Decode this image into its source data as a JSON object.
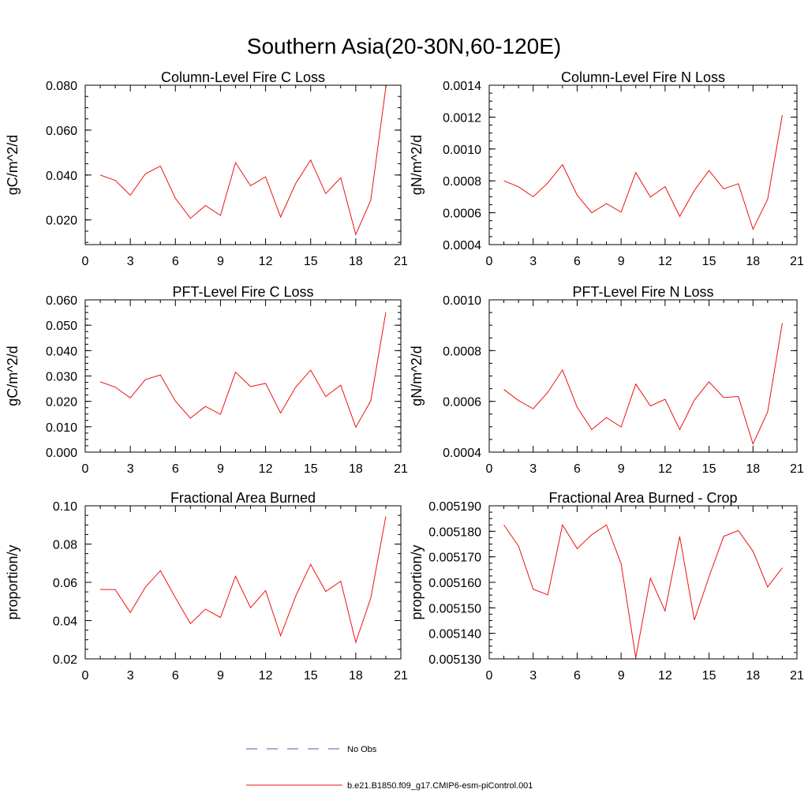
{
  "page_title": "Southern Asia(20-30N,60-120E)",
  "colors": {
    "model_line": "#ee1111",
    "obs_line": "#5555aa",
    "axis": "#000000"
  },
  "legend": [
    {
      "label": "No Obs",
      "style": "dashed",
      "color": "#5555aa"
    },
    {
      "label": "b.e21.B1850.f09_g17.CMIP6-esm-piControl.001",
      "style": "solid",
      "color": "#ee1111"
    }
  ],
  "chart_data": [
    {
      "type": "line",
      "title": "Column-Level Fire C Loss",
      "ylabel": "gC/m^2/d",
      "xlim": [
        0,
        21
      ],
      "xticks": [
        "0",
        "3",
        "6",
        "9",
        "12",
        "15",
        "18",
        "21"
      ],
      "ylim": [
        0.009,
        0.08
      ],
      "yticks": [
        "0.020",
        "0.040",
        "0.060",
        "0.080"
      ],
      "ytick_values": [
        0.02,
        0.04,
        0.06,
        0.08
      ],
      "yminor_step": 0.005,
      "x": [
        1,
        2,
        3,
        4,
        5,
        6,
        7,
        8,
        9,
        10,
        11,
        12,
        13,
        14,
        15,
        16,
        17,
        18,
        19,
        20
      ],
      "series": [
        {
          "name": "b.e21.B1850.f09_g17.CMIP6-esm-piControl.001",
          "values": [
            0.04,
            0.0376,
            0.031,
            0.0405,
            0.044,
            0.0296,
            0.0207,
            0.0264,
            0.022,
            0.0455,
            0.0352,
            0.0392,
            0.0213,
            0.0362,
            0.0467,
            0.0317,
            0.0388,
            0.0135,
            0.0288,
            0.079
          ]
        }
      ]
    },
    {
      "type": "line",
      "title": "Column-Level Fire N Loss",
      "ylabel": "gN/m^2/d",
      "xlim": [
        0,
        21
      ],
      "xticks": [
        "0",
        "3",
        "6",
        "9",
        "12",
        "15",
        "18",
        "21"
      ],
      "ylim": [
        0.0004,
        0.0014
      ],
      "yticks": [
        "0.0004",
        "0.0006",
        "0.0008",
        "0.0010",
        "0.0012",
        "0.0014"
      ],
      "ytick_values": [
        0.0004,
        0.0006,
        0.0008,
        0.001,
        0.0012,
        0.0014
      ],
      "yminor_step": 5e-05,
      "x": [
        1,
        2,
        3,
        4,
        5,
        6,
        7,
        8,
        9,
        10,
        11,
        12,
        13,
        14,
        15,
        16,
        17,
        18,
        19,
        20
      ],
      "series": [
        {
          "name": "b.e21.B1850.f09_g17.CMIP6-esm-piControl.001",
          "values": [
            0.0008,
            0.000763,
            0.0007,
            0.000787,
            0.000902,
            0.00071,
            0.0006,
            0.000657,
            0.000604,
            0.000852,
            0.000698,
            0.000764,
            0.000577,
            0.00074,
            0.000865,
            0.00075,
            0.000782,
            0.000497,
            0.000685,
            0.001212
          ]
        }
      ]
    },
    {
      "type": "line",
      "title": "PFT-Level Fire C Loss",
      "ylabel": "gC/m^2/d",
      "xlim": [
        0,
        21
      ],
      "xticks": [
        "0",
        "3",
        "6",
        "9",
        "12",
        "15",
        "18",
        "21"
      ],
      "ylim": [
        0.0,
        0.06
      ],
      "yticks": [
        "0.000",
        "0.010",
        "0.020",
        "0.030",
        "0.040",
        "0.050",
        "0.060"
      ],
      "ytick_values": [
        0.0,
        0.01,
        0.02,
        0.03,
        0.04,
        0.05,
        0.06
      ],
      "yminor_step": 0.0025,
      "x": [
        1,
        2,
        3,
        4,
        5,
        6,
        7,
        8,
        9,
        10,
        11,
        12,
        13,
        14,
        15,
        16,
        17,
        18,
        19,
        20
      ],
      "series": [
        {
          "name": "b.e21.B1850.f09_g17.CMIP6-esm-piControl.001",
          "values": [
            0.0277,
            0.0256,
            0.0214,
            0.0286,
            0.0304,
            0.0201,
            0.0134,
            0.018,
            0.0149,
            0.0315,
            0.0258,
            0.0271,
            0.0154,
            0.0256,
            0.0323,
            0.0219,
            0.0264,
            0.0098,
            0.0202,
            0.0551
          ]
        }
      ]
    },
    {
      "type": "line",
      "title": "PFT-Level Fire N Loss",
      "ylabel": "gN/m^2/d",
      "xlim": [
        0,
        21
      ],
      "xticks": [
        "0",
        "3",
        "6",
        "9",
        "12",
        "15",
        "18",
        "21"
      ],
      "ylim": [
        0.0004,
        0.001
      ],
      "yticks": [
        "0.0004",
        "0.0006",
        "0.0008",
        "0.0010"
      ],
      "ytick_values": [
        0.0004,
        0.0006,
        0.0008,
        0.001
      ],
      "yminor_step": 5e-05,
      "x": [
        1,
        2,
        3,
        4,
        5,
        6,
        7,
        8,
        9,
        10,
        11,
        12,
        13,
        14,
        15,
        16,
        17,
        18,
        19,
        20
      ],
      "series": [
        {
          "name": "b.e21.B1850.f09_g17.CMIP6-esm-piControl.001",
          "values": [
            0.000647,
            0.000603,
            0.000571,
            0.000636,
            0.000724,
            0.000577,
            0.000489,
            0.000536,
            0.000499,
            0.000668,
            0.000582,
            0.000608,
            0.000489,
            0.000605,
            0.000677,
            0.000615,
            0.000619,
            0.000432,
            0.000559,
            0.000908
          ]
        }
      ]
    },
    {
      "type": "line",
      "title": "Fractional Area Burned",
      "ylabel": "proportion/y",
      "xlim": [
        0,
        21
      ],
      "xticks": [
        "0",
        "3",
        "6",
        "9",
        "12",
        "15",
        "18",
        "21"
      ],
      "ylim": [
        0.02,
        0.1
      ],
      "yticks": [
        "0.02",
        "0.04",
        "0.06",
        "0.08",
        "0.10"
      ],
      "ytick_values": [
        0.02,
        0.04,
        0.06,
        0.08,
        0.1
      ],
      "yminor_step": 0.005,
      "x": [
        1,
        2,
        3,
        4,
        5,
        6,
        7,
        8,
        9,
        10,
        11,
        12,
        13,
        14,
        15,
        16,
        17,
        18,
        19,
        20
      ],
      "series": [
        {
          "name": "b.e21.B1850.f09_g17.CMIP6-esm-piControl.001",
          "values": [
            0.0563,
            0.0562,
            0.0442,
            0.0574,
            0.0661,
            0.052,
            0.0384,
            0.046,
            0.0416,
            0.0632,
            0.0467,
            0.0557,
            0.0321,
            0.0527,
            0.0694,
            0.0552,
            0.0606,
            0.0286,
            0.0518,
            0.0944
          ]
        }
      ]
    },
    {
      "type": "line",
      "title": "Fractional Area Burned - Crop",
      "ylabel": "proportion/y",
      "xlim": [
        0,
        21
      ],
      "xticks": [
        "0",
        "3",
        "6",
        "9",
        "12",
        "15",
        "18",
        "21"
      ],
      "ylim": [
        0.00513,
        0.00519
      ],
      "yticks": [
        "0.005130",
        "0.005140",
        "0.005150",
        "0.005160",
        "0.005170",
        "0.005180",
        "0.005190"
      ],
      "ytick_values": [
        0.00513,
        0.00514,
        0.00515,
        0.00516,
        0.00517,
        0.00518,
        0.00519
      ],
      "yminor_step": 2.5e-06,
      "x": [
        1,
        2,
        3,
        4,
        5,
        6,
        7,
        8,
        9,
        10,
        11,
        12,
        13,
        14,
        15,
        16,
        17,
        18,
        19,
        20
      ],
      "series": [
        {
          "name": "b.e21.B1850.f09_g17.CMIP6-esm-piControl.001",
          "values": [
            0.0051825,
            0.0051742,
            0.0051573,
            0.0051551,
            0.0051825,
            0.0051732,
            0.0051787,
            0.0051825,
            0.0051673,
            0.0051305,
            0.0051616,
            0.0051488,
            0.005178,
            0.0051452,
            0.0051622,
            0.005178,
            0.0051803,
            0.0051722,
            0.0051582,
            0.0051657
          ]
        }
      ]
    }
  ]
}
